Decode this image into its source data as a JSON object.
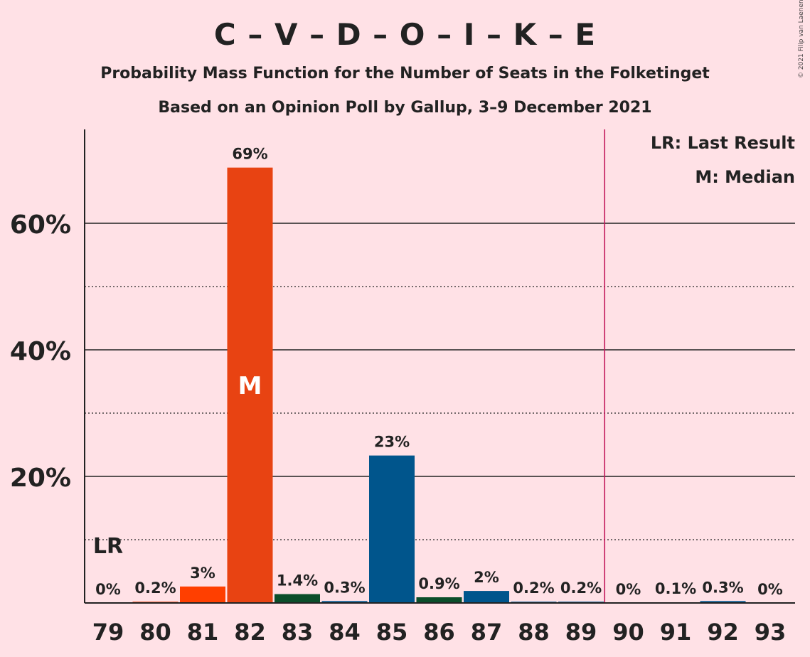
{
  "title": "C – V – D – O – I – K – E",
  "subtitle": "Probability Mass Function for the Number of Seats in the Folketinget",
  "subtitle2": "Based on an Opinion Poll by Gallup, 3–9 December 2021",
  "copyright": "© 2021 Filip van Laenen",
  "legend": {
    "lr": "LR: Last Result",
    "m": "M: Median"
  },
  "markers": {
    "last_result_label": "LR",
    "median_label": "M"
  },
  "chart_data": {
    "type": "bar",
    "title": "C – V – D – O – I – K – E",
    "categories": [
      "79",
      "80",
      "81",
      "82",
      "83",
      "84",
      "85",
      "86",
      "87",
      "88",
      "89",
      "90",
      "91",
      "92",
      "93"
    ],
    "values": [
      0,
      0.2,
      2.6,
      68.8,
      1.4,
      0.3,
      23.3,
      0.9,
      1.9,
      0.2,
      0.2,
      0,
      0.1,
      0.3,
      0
    ],
    "value_labels": [
      "0%",
      "0.2%",
      "3%",
      "69%",
      "1.4%",
      "0.3%",
      "23%",
      "0.9%",
      "2%",
      "0.2%",
      "0.2%",
      "0%",
      "0.1%",
      "0.3%",
      "0%"
    ],
    "colors": [
      "#E84312",
      "#E84312",
      "#FF3F00",
      "#E84312",
      "#0B4E2A",
      "#00558C",
      "#00558C",
      "#0B4E2A",
      "#00558C",
      "#00558C",
      "#00558C",
      "#00558C",
      "#00558C",
      "#00558C",
      "#00558C"
    ],
    "ylim": [
      0,
      75
    ],
    "yticks": [
      20,
      40,
      60
    ],
    "ytick_labels": [
      "20%",
      "40%",
      "60%"
    ],
    "minor_gridlines": [
      10,
      30,
      50
    ],
    "majority_line_between": [
      "89",
      "90"
    ],
    "majority_line_color": "#C2185B",
    "last_result": "79",
    "median": "82",
    "legend_position": "top-right"
  }
}
